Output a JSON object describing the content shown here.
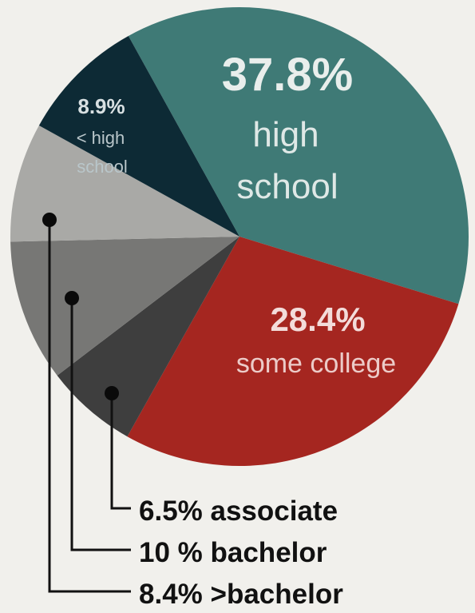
{
  "chart_data": {
    "type": "pie",
    "slices": [
      {
        "label_pct": "37.8%",
        "label_line1": "high",
        "label_line2": "school",
        "value": 37.8,
        "color": "#3f7a76"
      },
      {
        "label_pct": "28.4%",
        "label_line1": "some college",
        "value": 28.4,
        "color": "#a52620"
      },
      {
        "label_pct": "6.5%",
        "label_line1": "associate",
        "value": 6.5,
        "color": "#3e3e3e"
      },
      {
        "label_pct": "10 %",
        "label_line1": "bachelor",
        "value": 10.0,
        "color": "#777775"
      },
      {
        "label_pct": "8.4%",
        "label_line1": ">bachelor",
        "value": 8.4,
        "color": "#a9a9a6"
      },
      {
        "label_pct": "8.9%",
        "label_line1": "< high",
        "label_line2": "school",
        "value": 8.9,
        "color": "#0d2a35"
      }
    ],
    "legend": [
      {
        "text": "6.5% associate"
      },
      {
        "text": "10 % bachelor"
      },
      {
        "text": "8.4% >bachelor"
      }
    ]
  }
}
